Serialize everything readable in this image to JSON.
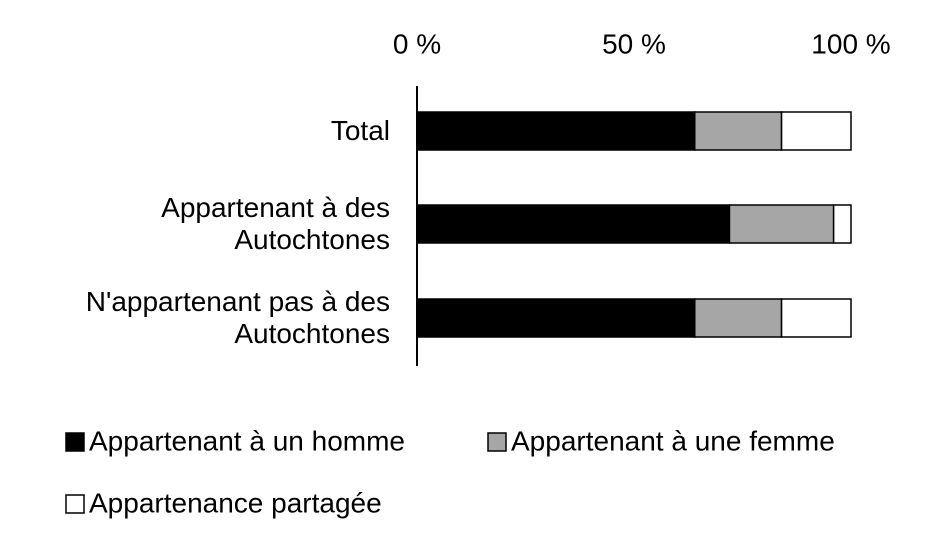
{
  "chart_data": {
    "type": "stacked-bar-horizontal",
    "categories": [
      "Total",
      "Appartenant à des Autochtones",
      "N'appartenant pas à des Autochtones"
    ],
    "series": [
      {
        "name": "Appartenant à un homme",
        "color": "#000000",
        "values": [
          64,
          72,
          64
        ]
      },
      {
        "name": "Appartenant à une femme",
        "color": "#a6a6a6",
        "values": [
          20,
          24,
          20
        ]
      },
      {
        "name": "Appartenance partagée",
        "color": "#ffffff",
        "values": [
          16,
          4,
          16
        ]
      }
    ],
    "xlim": [
      0,
      100
    ],
    "xticks": [
      {
        "value": 0,
        "label": "0 %"
      },
      {
        "value": 50,
        "label": "50 %"
      },
      {
        "value": 100,
        "label": "100 %"
      }
    ],
    "grid": false
  }
}
